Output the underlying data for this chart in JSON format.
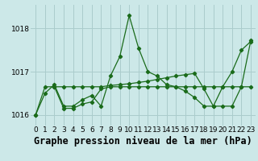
{
  "bg_color": "#cce8e8",
  "grid_color": "#aacccc",
  "line_color": "#1a6b1a",
  "title": "Graphe pression niveau de la mer (hPa)",
  "ylim": [
    1015.75,
    1018.55
  ],
  "xlim": [
    -0.5,
    23.5
  ],
  "yticks": [
    1016,
    1017,
    1018
  ],
  "xticks": [
    0,
    1,
    2,
    3,
    4,
    5,
    6,
    7,
    8,
    9,
    10,
    11,
    12,
    13,
    14,
    15,
    16,
    17,
    18,
    19,
    20,
    21,
    22,
    23
  ],
  "s1x": [
    0,
    1,
    2,
    3,
    4,
    5,
    6,
    7,
    8,
    9,
    10,
    11,
    12,
    13,
    14,
    15,
    16,
    17,
    18,
    19,
    20,
    21,
    22,
    23
  ],
  "s1y": [
    1016.0,
    1016.5,
    1016.7,
    1016.2,
    1016.2,
    1016.35,
    1016.45,
    1016.2,
    1016.9,
    1017.35,
    1018.3,
    1017.55,
    1017.0,
    1016.9,
    1016.7,
    1016.65,
    1016.55,
    1016.4,
    1016.2,
    1016.2,
    1016.65,
    1017.0,
    1017.5,
    1017.7
  ],
  "s2x": [
    0,
    1,
    2,
    3,
    4,
    5,
    6,
    7,
    8,
    9,
    10,
    11,
    12,
    13,
    14,
    15,
    16,
    17,
    18,
    19,
    20,
    21,
    22,
    23
  ],
  "s2y": [
    1016.0,
    1016.65,
    1016.65,
    1016.15,
    1016.15,
    1016.25,
    1016.3,
    1016.6,
    1016.65,
    1016.65,
    1016.65,
    1016.65,
    1016.65,
    1016.65,
    1016.65,
    1016.65,
    1016.65,
    1016.65,
    1016.65,
    1016.65,
    1016.65,
    1016.65,
    1016.65,
    1016.65
  ],
  "s3x": [
    2,
    3,
    4,
    5,
    6,
    7,
    8,
    9,
    10,
    11,
    12,
    13,
    14,
    15,
    16,
    17,
    18,
    19,
    20,
    21,
    22,
    23
  ],
  "s3y": [
    1016.65,
    1016.65,
    1016.65,
    1016.65,
    1016.65,
    1016.65,
    1016.68,
    1016.7,
    1016.72,
    1016.75,
    1016.78,
    1016.82,
    1016.86,
    1016.9,
    1016.93,
    1016.96,
    1016.6,
    1016.2,
    1016.2,
    1016.2,
    1016.65,
    1017.72
  ],
  "title_fontsize": 8.5,
  "tick_fontsize": 6.5
}
